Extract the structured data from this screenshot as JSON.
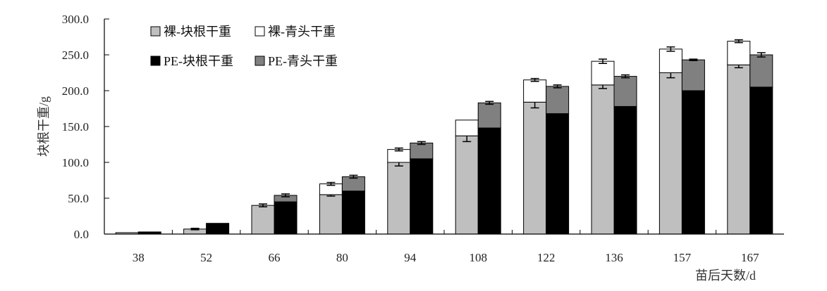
{
  "chart_data": {
    "type": "bar",
    "stacked": true,
    "ylabel": "块根干重/g",
    "xlabel": "苗后天数/d",
    "ylim": [
      0,
      300
    ],
    "yticks": [
      "0.0",
      "50.0",
      "100.0",
      "150.0",
      "200.0",
      "250.0",
      "300.0"
    ],
    "categories": [
      "38",
      "52",
      "66",
      "80",
      "94",
      "108",
      "122",
      "136",
      "157",
      "167"
    ],
    "groups": [
      {
        "name": "裸",
        "series": [
          {
            "name": "裸-块根干重",
            "color": "#bfbfbf",
            "values": [
              2,
              7,
              40,
              55,
              100,
              137,
              184,
              208,
              225,
              236
            ],
            "errors": [
              0,
              0,
              0,
              2,
              5,
              8,
              8,
              5,
              7,
              4
            ]
          },
          {
            "name": "裸-青头干重",
            "color": "#ffffff",
            "values": [
              0,
              0,
              0,
              15,
              18,
              22,
              31,
              33,
              33,
              33
            ],
            "errors": [
              0,
              1,
              2,
              2,
              2,
              0,
              2,
              3,
              3,
              2
            ]
          }
        ]
      },
      {
        "name": "PE",
        "series": [
          {
            "name": "PE-块根干重",
            "color": "#000000",
            "values": [
              3,
              15,
              45,
              60,
              105,
              148,
              168,
              178,
              200,
              205
            ],
            "errors": [
              0,
              0,
              0,
              4,
              6,
              6,
              6,
              2,
              3,
              3
            ]
          },
          {
            "name": "PE-青头干重",
            "color": "#808080",
            "values": [
              0,
              0,
              9,
              20,
              22,
              35,
              38,
              42,
              43,
              45
            ],
            "errors": [
              0,
              0,
              2,
              2,
              2,
              2,
              2,
              2,
              1,
              3
            ]
          }
        ]
      }
    ],
    "legend": {
      "placement": "top-left",
      "items": [
        "裸-块根干重",
        "裸-青头干重",
        "PE-块根干重",
        "PE-青头干重"
      ]
    },
    "grid": false
  }
}
